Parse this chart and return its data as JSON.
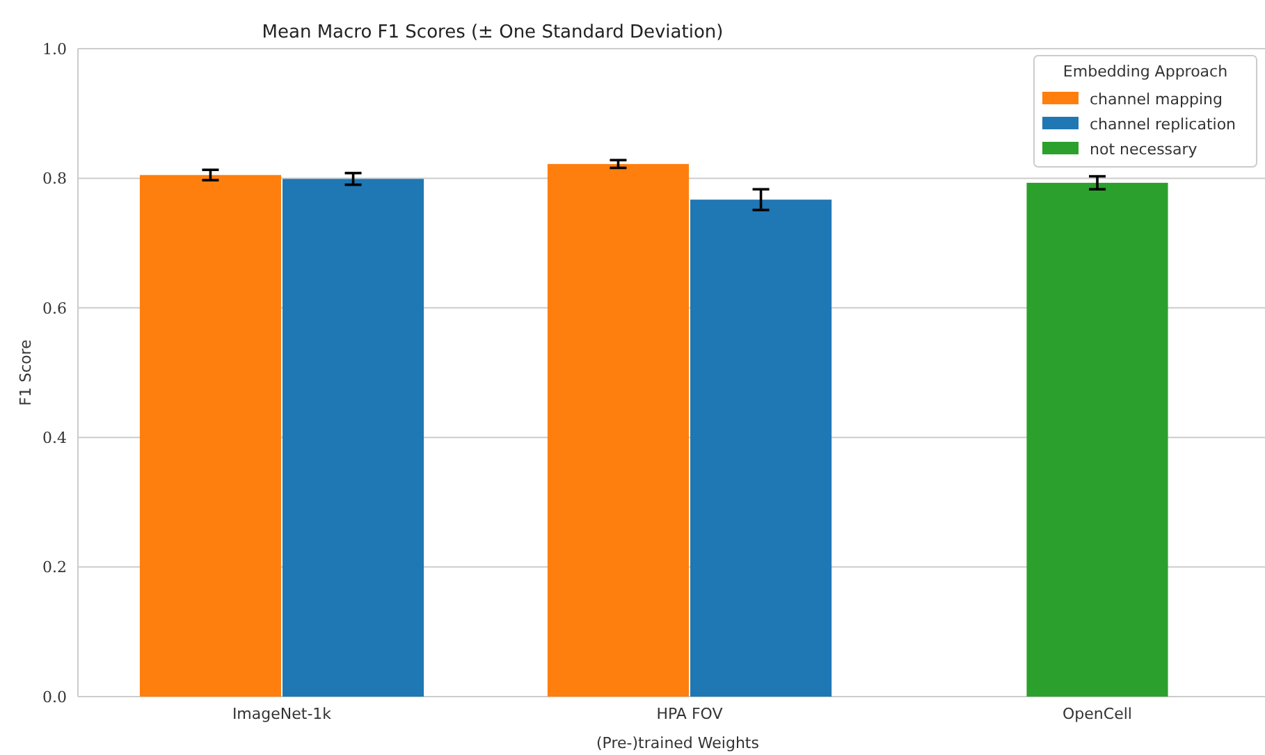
{
  "chart_data": {
    "type": "bar",
    "title": "Mean Macro F1 Scores (± One Standard Deviation)",
    "xlabel": "(Pre-)trained Weights",
    "ylabel": "F1 Score",
    "legend_title": "Embedding Approach",
    "categories": [
      "ImageNet-1k",
      "HPA FOV",
      "OpenCell"
    ],
    "series": [
      {
        "name": "channel mapping",
        "color": "#ff7f0e",
        "values": [
          0.805,
          0.822,
          null
        ],
        "errors": [
          0.008,
          0.006,
          null
        ]
      },
      {
        "name": "channel replication",
        "color": "#1f77b4",
        "values": [
          0.799,
          0.767,
          null
        ],
        "errors": [
          0.009,
          0.016,
          null
        ]
      },
      {
        "name": "not necessary",
        "color": "#2ca02c",
        "values": [
          null,
          null,
          0.793
        ],
        "errors": [
          null,
          null,
          0.01
        ]
      }
    ],
    "ylim": [
      0,
      1
    ],
    "yticks": [
      {
        "value": 0,
        "label": "0.0"
      },
      {
        "value": 0.2,
        "label": "0.2"
      },
      {
        "value": 0.4,
        "label": "0.4"
      },
      {
        "value": 0.6,
        "label": "0.6"
      },
      {
        "value": 0.8,
        "label": "0.8"
      },
      {
        "value": 1,
        "label": "1.0"
      }
    ],
    "grid": "y",
    "legend": "top right"
  }
}
